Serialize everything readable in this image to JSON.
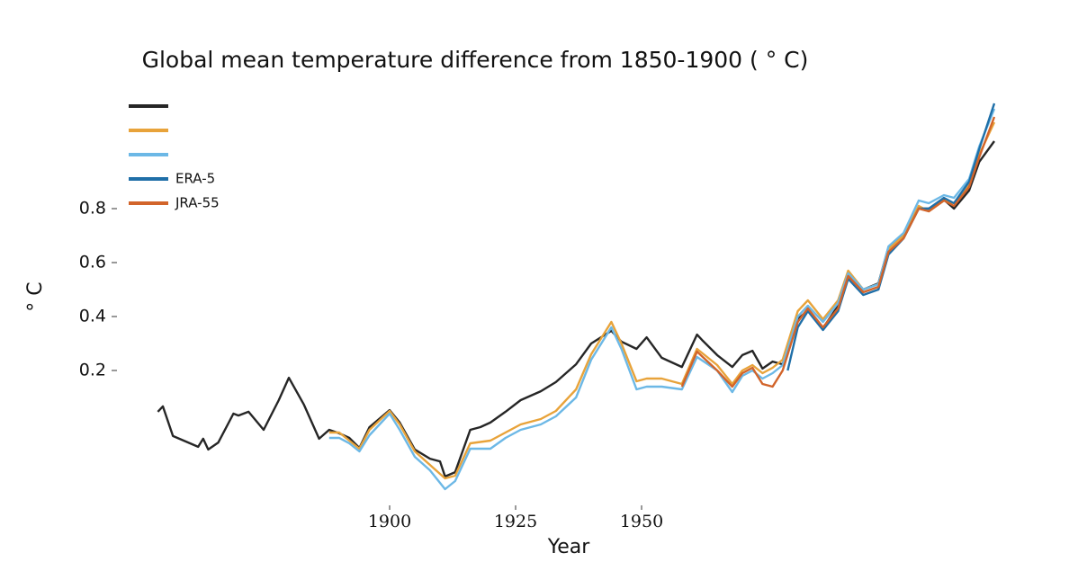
{
  "chart_data": {
    "type": "line",
    "title": "Global mean temperature difference from 1850-1900 ( ° C)",
    "xlabel": "Year",
    "ylabel": "° C",
    "xlim": [
      1850,
      2021
    ],
    "xticks": [
      1900,
      1925,
      1950
    ],
    "ylim": [
      -0.25,
      1.2
    ],
    "yticks": [
      0.2,
      0.4,
      0.6,
      0.8
    ],
    "legend": "upper left",
    "grid": false,
    "series": [
      {
        "color": "#262626",
        "x": [
          1854,
          1855,
          1857,
          1862,
          1863,
          1864,
          1866,
          1869,
          1870,
          1872,
          1875,
          1878,
          1880,
          1883,
          1886,
          1888,
          1890,
          1892,
          1894,
          1896,
          1900,
          1902,
          1905,
          1908,
          1910,
          1911,
          1913,
          1916,
          1918,
          1920,
          1923,
          1926,
          1930,
          1933,
          1937,
          1940,
          1944,
          1946,
          1949,
          1951,
          1954,
          1958,
          1961,
          1962,
          1965,
          1968,
          1970,
          1972,
          1974,
          1976,
          1978,
          1981,
          1983,
          1986,
          1989,
          1991,
          1994,
          1997,
          1999,
          2002,
          2005,
          2007,
          2010,
          2012,
          2015,
          2017,
          2020
        ],
        "values": [
          0.047,
          0.067,
          -0.043,
          -0.083,
          -0.053,
          -0.093,
          -0.067,
          0.04,
          0.033,
          0.047,
          -0.02,
          0.09,
          0.173,
          0.073,
          -0.053,
          -0.02,
          -0.033,
          -0.05,
          -0.087,
          -0.01,
          0.053,
          0.007,
          -0.093,
          -0.127,
          -0.137,
          -0.193,
          -0.177,
          -0.02,
          -0.01,
          0.007,
          0.047,
          0.09,
          0.123,
          0.157,
          0.223,
          0.3,
          0.347,
          0.307,
          0.28,
          0.323,
          0.247,
          0.213,
          0.333,
          0.313,
          0.257,
          0.213,
          0.257,
          0.273,
          0.207,
          0.233,
          0.223,
          0.39,
          0.423,
          0.357,
          0.44,
          0.557,
          0.5,
          0.523,
          0.657,
          0.7,
          0.8,
          0.8,
          0.833,
          0.8,
          0.867,
          0.973,
          1.05
        ]
      },
      {
        "color": "#e8a33a",
        "x": [
          1888,
          1890,
          1892,
          1894,
          1896,
          1900,
          1902,
          1905,
          1908,
          1911,
          1913,
          1916,
          1920,
          1923,
          1926,
          1930,
          1933,
          1937,
          1940,
          1944,
          1946,
          1949,
          1951,
          1954,
          1958,
          1961,
          1965,
          1968,
          1970,
          1972,
          1974,
          1976,
          1978,
          1981,
          1983,
          1986,
          1989,
          1991,
          1994,
          1997,
          1999,
          2002,
          2005,
          2007,
          2010,
          2012,
          2015,
          2017,
          2020
        ],
        "values": [
          -0.03,
          -0.03,
          -0.06,
          -0.09,
          -0.02,
          0.05,
          0.0,
          -0.1,
          -0.15,
          -0.2,
          -0.19,
          -0.07,
          -0.06,
          -0.03,
          0.0,
          0.02,
          0.05,
          0.13,
          0.26,
          0.38,
          0.3,
          0.16,
          0.17,
          0.17,
          0.15,
          0.28,
          0.22,
          0.15,
          0.2,
          0.22,
          0.19,
          0.21,
          0.24,
          0.42,
          0.46,
          0.39,
          0.46,
          0.57,
          0.5,
          0.52,
          0.65,
          0.7,
          0.81,
          0.79,
          0.83,
          0.82,
          0.89,
          1.0,
          1.12
        ]
      },
      {
        "color": "#6cb8e6",
        "x": [
          1888,
          1890,
          1892,
          1894,
          1896,
          1900,
          1902,
          1905,
          1908,
          1911,
          1913,
          1916,
          1920,
          1923,
          1926,
          1930,
          1933,
          1937,
          1940,
          1944,
          1946,
          1949,
          1951,
          1954,
          1958,
          1961,
          1965,
          1968,
          1970,
          1972,
          1974,
          1976,
          1978,
          1981,
          1983,
          1986,
          1989,
          1991,
          1994,
          1997,
          1999,
          2002,
          2005,
          2007,
          2010,
          2012,
          2015,
          2017,
          2020
        ],
        "values": [
          -0.05,
          -0.05,
          -0.07,
          -0.1,
          -0.04,
          0.04,
          -0.02,
          -0.12,
          -0.17,
          -0.24,
          -0.21,
          -0.09,
          -0.09,
          -0.05,
          -0.02,
          0.0,
          0.03,
          0.1,
          0.24,
          0.36,
          0.28,
          0.13,
          0.14,
          0.14,
          0.13,
          0.25,
          0.2,
          0.12,
          0.18,
          0.2,
          0.17,
          0.19,
          0.22,
          0.4,
          0.44,
          0.38,
          0.45,
          0.56,
          0.5,
          0.52,
          0.66,
          0.71,
          0.83,
          0.82,
          0.85,
          0.84,
          0.91,
          1.03,
          1.17
        ]
      },
      {
        "name": "ERA-5",
        "color": "#1f6fa8",
        "x": [
          1979,
          1981,
          1983,
          1986,
          1989,
          1991,
          1994,
          1997,
          1999,
          2002,
          2005,
          2007,
          2010,
          2012,
          2015,
          2017,
          2020
        ],
        "values": [
          0.2,
          0.36,
          0.42,
          0.35,
          0.42,
          0.54,
          0.48,
          0.5,
          0.63,
          0.69,
          0.8,
          0.8,
          0.84,
          0.82,
          0.9,
          1.02,
          1.19
        ]
      },
      {
        "name": "JRA-55",
        "color": "#d2642a",
        "x": [
          1958,
          1961,
          1965,
          1968,
          1970,
          1972,
          1974,
          1976,
          1978,
          1981,
          1983,
          1986,
          1989,
          1991,
          1994,
          1997,
          1999,
          2002,
          2005,
          2007,
          2010,
          2012,
          2015,
          2017,
          2020
        ],
        "values": [
          0.14,
          0.27,
          0.2,
          0.14,
          0.19,
          0.21,
          0.15,
          0.14,
          0.2,
          0.38,
          0.43,
          0.36,
          0.43,
          0.55,
          0.49,
          0.51,
          0.64,
          0.69,
          0.8,
          0.79,
          0.83,
          0.81,
          0.88,
          0.99,
          1.14
        ]
      }
    ]
  }
}
